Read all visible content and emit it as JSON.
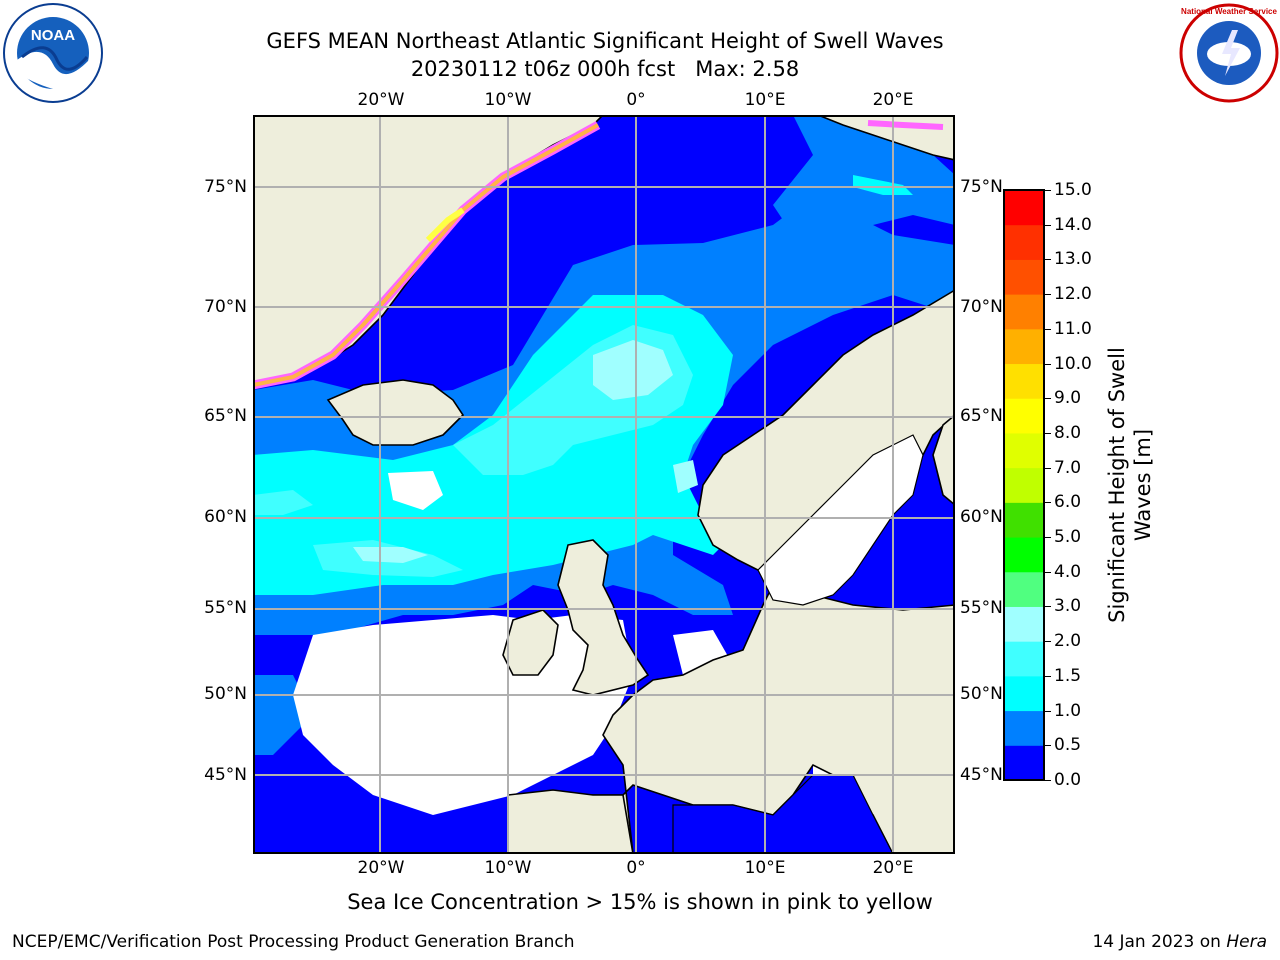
{
  "header": {
    "title": "GEFS MEAN Northeast Atlantic Significant Height of Swell Waves",
    "subtitle_run": "20230112 t06z 000h fcst",
    "subtitle_max": "Max: 2.58",
    "logo_left": "NOAA",
    "logo_right": "National Weather Service"
  },
  "map": {
    "lon_ticks": [
      "20°W",
      "10°W",
      "0°",
      "10°E",
      "20°E"
    ],
    "lat_ticks": [
      "75°N",
      "70°N",
      "65°N",
      "60°N",
      "55°N",
      "50°N",
      "45°N"
    ],
    "colors": {
      "land": "#eeeedc",
      "coast": "#000000",
      "grid": "#b0b0b0",
      "ice_pink": "#ff66ff",
      "ice_orange": "#ffb347",
      "ice_yellow": "#ffff44"
    }
  },
  "colorbar": {
    "label": "Significant Height of Swell Waves [m]",
    "ticks": [
      "15.0",
      "14.0",
      "13.0",
      "12.0",
      "11.0",
      "10.0",
      "9.0",
      "8.0",
      "7.0",
      "6.0",
      "5.0",
      "4.0",
      "3.0",
      "2.0",
      "1.5",
      "1.0",
      "0.5",
      "0.0"
    ],
    "bins": [
      {
        "from": 0.0,
        "to": 0.5,
        "color": "#0000ff"
      },
      {
        "from": 0.5,
        "to": 1.0,
        "color": "#0080ff"
      },
      {
        "from": 1.0,
        "to": 1.5,
        "color": "#00ffff"
      },
      {
        "from": 1.5,
        "to": 2.0,
        "color": "#40ffff"
      },
      {
        "from": 2.0,
        "to": 3.0,
        "color": "#a0ffff"
      },
      {
        "from": 3.0,
        "to": 4.0,
        "color": "#50ff80"
      },
      {
        "from": 4.0,
        "to": 5.0,
        "color": "#00ff00"
      },
      {
        "from": 5.0,
        "to": 6.0,
        "color": "#40e000"
      },
      {
        "from": 6.0,
        "to": 7.0,
        "color": "#c0ff00"
      },
      {
        "from": 7.0,
        "to": 8.0,
        "color": "#e0ff00"
      },
      {
        "from": 8.0,
        "to": 9.0,
        "color": "#ffff00"
      },
      {
        "from": 9.0,
        "to": 10.0,
        "color": "#ffe000"
      },
      {
        "from": 10.0,
        "to": 11.0,
        "color": "#ffb000"
      },
      {
        "from": 11.0,
        "to": 12.0,
        "color": "#ff8000"
      },
      {
        "from": 12.0,
        "to": 13.0,
        "color": "#ff5000"
      },
      {
        "from": 13.0,
        "to": 14.0,
        "color": "#ff3000"
      },
      {
        "from": 14.0,
        "to": 15.0,
        "color": "#ff0000"
      }
    ]
  },
  "footer": {
    "ice_note": "Sea Ice Concentration > 15% is shown in pink to yellow",
    "producer": "NCEP/EMC/Verification Post Processing Product Generation Branch",
    "date_prefix": "14 Jan 2023 on ",
    "machine": "Hera"
  }
}
